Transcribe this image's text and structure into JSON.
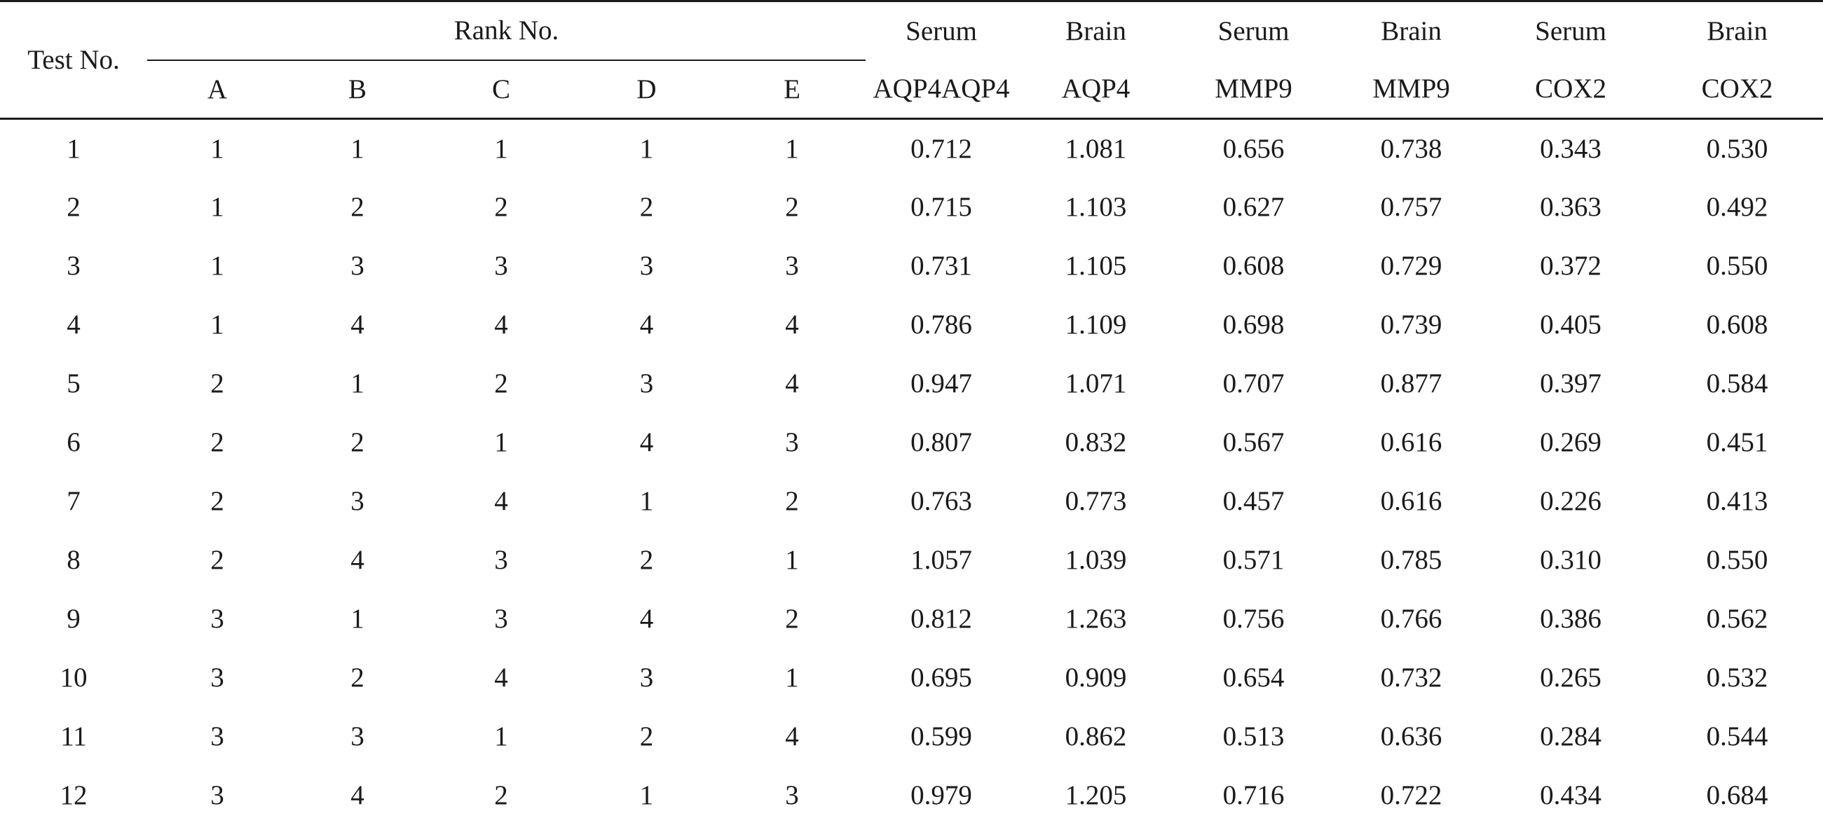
{
  "header": {
    "test_no": "Test No.",
    "rank_no": "Rank No.",
    "rank_cols": [
      "A",
      "B",
      "C",
      "D",
      "E"
    ],
    "measures": [
      {
        "top": "Serum",
        "bottom": "AQP4AQP4"
      },
      {
        "top": "Brain",
        "bottom": "AQP4"
      },
      {
        "top": "Serum",
        "bottom": "MMP9"
      },
      {
        "top": "Brain",
        "bottom": "MMP9"
      },
      {
        "top": "Serum",
        "bottom": "COX2"
      },
      {
        "top": "Brain",
        "bottom": "COX2"
      }
    ]
  },
  "rows": [
    [
      "1",
      "1",
      "1",
      "1",
      "1",
      "1",
      "0.712",
      "1.081",
      "0.656",
      "0.738",
      "0.343",
      "0.530"
    ],
    [
      "2",
      "1",
      "2",
      "2",
      "2",
      "2",
      "0.715",
      "1.103",
      "0.627",
      "0.757",
      "0.363",
      "0.492"
    ],
    [
      "3",
      "1",
      "3",
      "3",
      "3",
      "3",
      "0.731",
      "1.105",
      "0.608",
      "0.729",
      "0.372",
      "0.550"
    ],
    [
      "4",
      "1",
      "4",
      "4",
      "4",
      "4",
      "0.786",
      "1.109",
      "0.698",
      "0.739",
      "0.405",
      "0.608"
    ],
    [
      "5",
      "2",
      "1",
      "2",
      "3",
      "4",
      "0.947",
      "1.071",
      "0.707",
      "0.877",
      "0.397",
      "0.584"
    ],
    [
      "6",
      "2",
      "2",
      "1",
      "4",
      "3",
      "0.807",
      "0.832",
      "0.567",
      "0.616",
      "0.269",
      "0.451"
    ],
    [
      "7",
      "2",
      "3",
      "4",
      "1",
      "2",
      "0.763",
      "0.773",
      "0.457",
      "0.616",
      "0.226",
      "0.413"
    ],
    [
      "8",
      "2",
      "4",
      "3",
      "2",
      "1",
      "1.057",
      "1.039",
      "0.571",
      "0.785",
      "0.310",
      "0.550"
    ],
    [
      "9",
      "3",
      "1",
      "3",
      "4",
      "2",
      "0.812",
      "1.263",
      "0.756",
      "0.766",
      "0.386",
      "0.562"
    ],
    [
      "10",
      "3",
      "2",
      "4",
      "3",
      "1",
      "0.695",
      "0.909",
      "0.654",
      "0.732",
      "0.265",
      "0.532"
    ],
    [
      "11",
      "3",
      "3",
      "1",
      "2",
      "4",
      "0.599",
      "0.862",
      "0.513",
      "0.636",
      "0.284",
      "0.544"
    ],
    [
      "12",
      "3",
      "4",
      "2",
      "1",
      "3",
      "0.979",
      "1.205",
      "0.716",
      "0.722",
      "0.434",
      "0.684"
    ]
  ]
}
